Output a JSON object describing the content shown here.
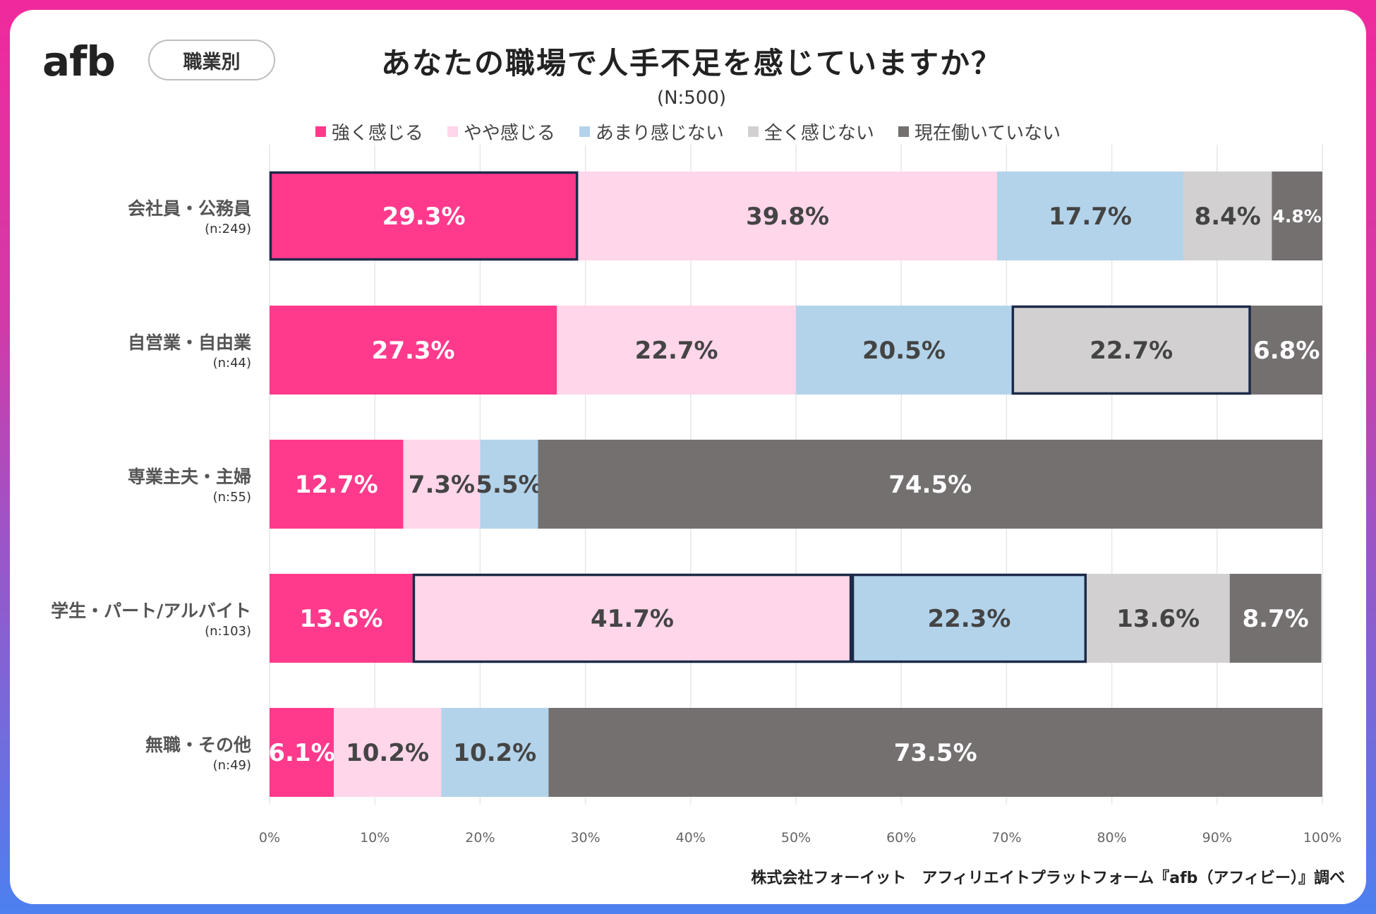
{
  "brand": {
    "logo_text": "afb"
  },
  "badge": {
    "label": "職業別"
  },
  "chart_data": {
    "type": "bar",
    "orientation": "horizontal-stacked-100",
    "title": "あなたの職場で人手不足を感じていますか？",
    "subtitle": "(N:500)",
    "legend_position": "top",
    "categories": [
      "会社員・公務員",
      "自営業・自由業",
      "専業主夫・主婦",
      "学生・パート/アルバイト",
      "無職・その他"
    ],
    "sample_sizes": [
      "(n:249)",
      "(n:44)",
      "(n:55)",
      "(n:103)",
      "(n:49)"
    ],
    "series": [
      {
        "name": "強く感じる",
        "color": "#ff3a8c",
        "label_color": "#ffffff",
        "values": [
          29.3,
          27.3,
          12.7,
          13.6,
          6.1
        ]
      },
      {
        "name": "やや感じる",
        "color": "#ffd6ea",
        "label_color": "#444444",
        "values": [
          39.8,
          22.7,
          7.3,
          41.7,
          10.2
        ]
      },
      {
        "name": "あまり感じない",
        "color": "#b3d3ea",
        "label_color": "#444444",
        "values": [
          17.7,
          20.5,
          5.5,
          22.3,
          10.2
        ]
      },
      {
        "name": "全く感じない",
        "color": "#d2d0d0",
        "label_color": "#444444",
        "values": [
          8.4,
          22.7,
          0,
          13.6,
          0
        ]
      },
      {
        "name": "現在働いていない",
        "color": "#747070",
        "label_color": "#ffffff",
        "values": [
          4.8,
          6.8,
          74.5,
          8.7,
          73.5
        ]
      }
    ],
    "highlighted": [
      {
        "category_index": 0,
        "series_index": 0
      },
      {
        "category_index": 1,
        "series_index": 3
      },
      {
        "category_index": 3,
        "series_index": 1
      },
      {
        "category_index": 3,
        "series_index": 2
      }
    ],
    "highlight_color": "#1c2a48",
    "xlim": [
      0,
      100
    ],
    "x_ticks": [
      "0%",
      "10%",
      "20%",
      "30%",
      "40%",
      "50%",
      "60%",
      "70%",
      "80%",
      "90%",
      "100%"
    ],
    "grid": true
  },
  "footer": {
    "source": "株式会社フォーイット　アフィリエイトプラットフォーム『afb（アフィビー）』調べ"
  }
}
